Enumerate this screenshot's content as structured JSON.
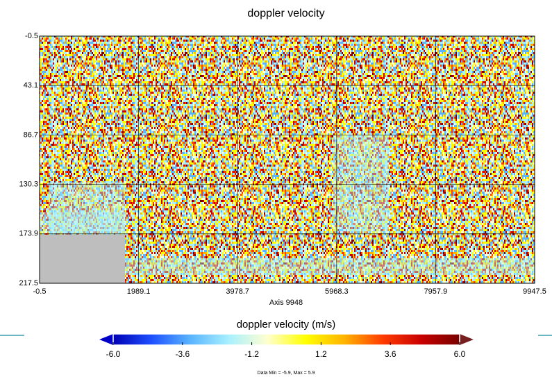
{
  "chart_data": {
    "type": "heatmap",
    "title": "doppler velocity",
    "x_label": "Axis 9948",
    "xlim": [
      -0.5,
      9947.5
    ],
    "xticks": [
      -0.5,
      1989.1,
      3978.7,
      5968.3,
      7957.9,
      9947.5
    ],
    "ylim": [
      217.5,
      -0.5
    ],
    "yticks": [
      -0.5,
      43.1,
      86.7,
      130.3,
      173.9,
      217.5
    ],
    "grid": true,
    "colorbar": {
      "title": "doppler velocity (m/s)",
      "clim": [
        -6,
        6
      ],
      "ticks": [
        {
          "value": -6,
          "label": "-6.0"
        },
        -3.6,
        -1.2,
        1.2,
        3.6,
        {
          "value": 6,
          "label": "6.0"
        }
      ],
      "colormap": [
        "#0000b4",
        "#1e50ff",
        "#5ab4ff",
        "#a8f0ff",
        "#ffffd0",
        "#ffff00",
        "#ffb400",
        "#ff3c00",
        "#c80000",
        "#780000"
      ],
      "under_color": "#0000c8",
      "over_color": "#782020"
    },
    "note": "Data Min = -5.9, Max = 5.9"
  }
}
